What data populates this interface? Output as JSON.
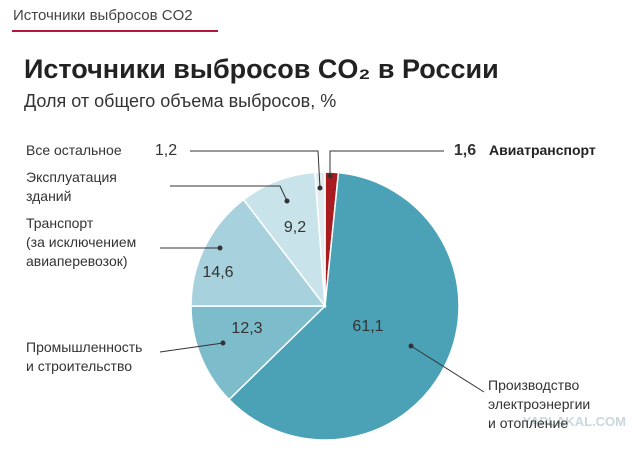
{
  "header": {
    "tab": "Источники выбросов CO2"
  },
  "chart_data": {
    "type": "pie",
    "title": "Источники выбросов CO₂ в России",
    "subtitle": "Доля от общего объема выбросов, %",
    "categories": [
      "Авиатранспорт",
      "Производство\nэлектроэнергии\nи отопление",
      "Промышленность\nи строительство",
      "Транспорт\n(за исключением\nавиаперевозок)",
      "Эксплуатация\nзданий",
      "Все остальное"
    ],
    "values": [
      1.6,
      61.1,
      12.3,
      14.6,
      9.2,
      1.2
    ],
    "value_labels": [
      "1,6",
      "61,1",
      "12,3",
      "14,6",
      "9,2",
      "1,2"
    ],
    "colors": [
      "#a81c1f",
      "#4ba2b6",
      "#7cbccb",
      "#a7d2dd",
      "#c9e3eb",
      "#e1ecf0"
    ]
  },
  "watermark": "YAPLAKAL.COM"
}
